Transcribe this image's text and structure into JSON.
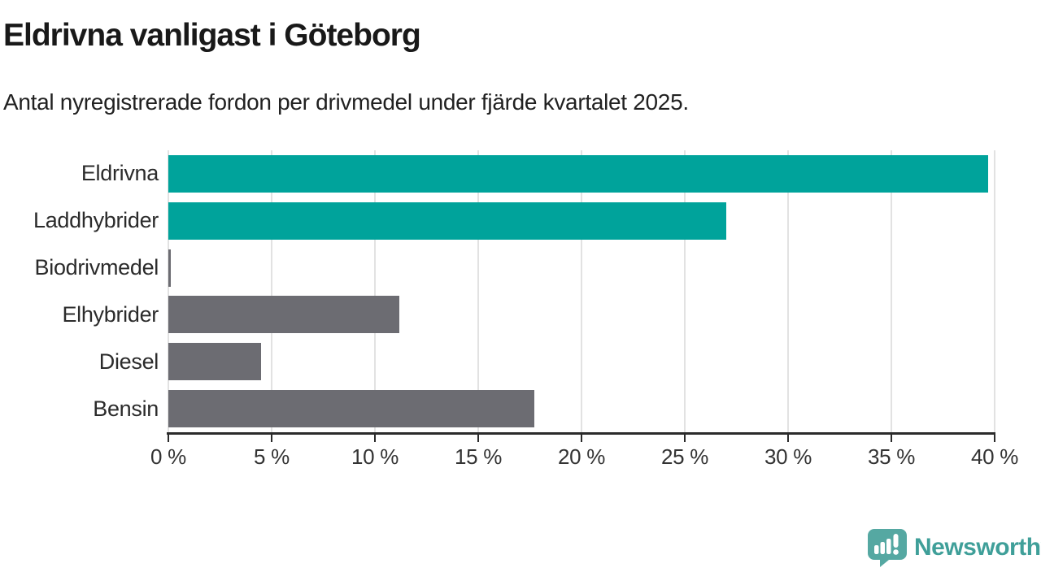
{
  "chart_data": {
    "type": "bar",
    "orientation": "horizontal",
    "title": "Eldrivna vanligast i Göteborg",
    "subtitle": "Antal nyregistrerade fordon per drivmedel under fjärde kvartalet 2025.",
    "categories": [
      "Eldrivna",
      "Laddhybrider",
      "Biodrivmedel",
      "Elhybrider",
      "Diesel",
      "Bensin"
    ],
    "values": [
      39.7,
      27.0,
      0.1,
      11.2,
      4.5,
      17.7
    ],
    "unit": "%",
    "xlim": [
      0,
      40
    ],
    "x_ticks": [
      0,
      5,
      10,
      15,
      20,
      25,
      30,
      35,
      40
    ],
    "x_tick_labels": [
      "0 %",
      "5 %",
      "10 %",
      "15 %",
      "20 %",
      "25 %",
      "30 %",
      "35 %",
      "40 %"
    ],
    "bar_colors": [
      "#00A39B",
      "#00A39B",
      "#6C6C72",
      "#6C6C72",
      "#6C6C72",
      "#6C6C72"
    ],
    "accent_color": "#00A39B",
    "neutral_color": "#6C6C72",
    "gridline_color": "#e2e2e2",
    "grid": "vertical",
    "legend": "none"
  },
  "footer": {
    "brand": "Newsworthy",
    "logo_icon": "newsworthy-speech-bubble-bar-chart-icon",
    "brand_color": "#3f9f99",
    "icon_color": "#55A8A2"
  }
}
